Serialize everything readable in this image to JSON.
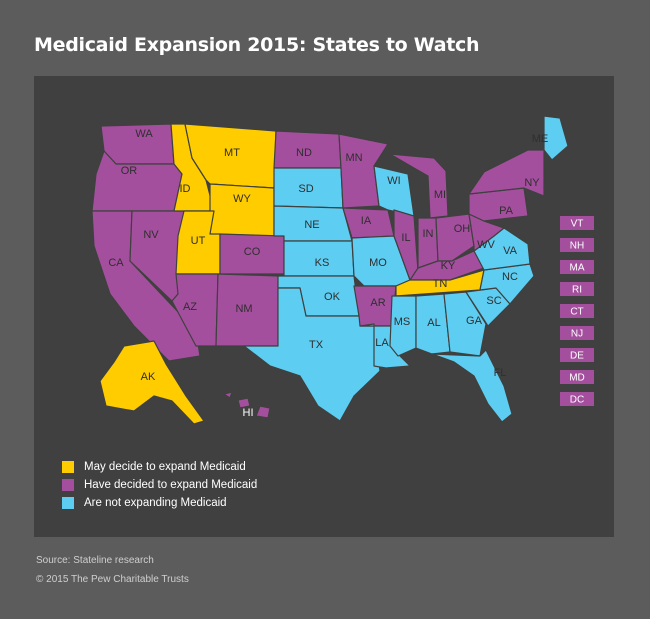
{
  "title": "Medicaid Expansion 2015: States to Watch",
  "colors": {
    "may": "#ffcc00",
    "decided": "#a44f9d",
    "not": "#5ecdf2"
  },
  "legend": [
    {
      "key": "may",
      "label": "May decide to expand Medicaid"
    },
    {
      "key": "decided",
      "label": "Have decided to expand Medicaid"
    },
    {
      "key": "not",
      "label": "Are not expanding Medicaid"
    }
  ],
  "states": [
    {
      "abbr": "WA",
      "status": "decided"
    },
    {
      "abbr": "OR",
      "status": "decided"
    },
    {
      "abbr": "CA",
      "status": "decided"
    },
    {
      "abbr": "NV",
      "status": "decided"
    },
    {
      "abbr": "ID",
      "status": "may"
    },
    {
      "abbr": "MT",
      "status": "may"
    },
    {
      "abbr": "WY",
      "status": "may"
    },
    {
      "abbr": "UT",
      "status": "may"
    },
    {
      "abbr": "AZ",
      "status": "decided"
    },
    {
      "abbr": "CO",
      "status": "decided"
    },
    {
      "abbr": "NM",
      "status": "decided"
    },
    {
      "abbr": "ND",
      "status": "decided"
    },
    {
      "abbr": "SD",
      "status": "not"
    },
    {
      "abbr": "NE",
      "status": "not"
    },
    {
      "abbr": "KS",
      "status": "not"
    },
    {
      "abbr": "OK",
      "status": "not"
    },
    {
      "abbr": "TX",
      "status": "not"
    },
    {
      "abbr": "MN",
      "status": "decided"
    },
    {
      "abbr": "IA",
      "status": "decided"
    },
    {
      "abbr": "MO",
      "status": "not"
    },
    {
      "abbr": "AR",
      "status": "decided"
    },
    {
      "abbr": "LA",
      "status": "not"
    },
    {
      "abbr": "WI",
      "status": "not"
    },
    {
      "abbr": "IL",
      "status": "decided"
    },
    {
      "abbr": "MI",
      "status": "decided"
    },
    {
      "abbr": "IN",
      "status": "decided"
    },
    {
      "abbr": "OH",
      "status": "decided"
    },
    {
      "abbr": "KY",
      "status": "decided"
    },
    {
      "abbr": "TN",
      "status": "may"
    },
    {
      "abbr": "MS",
      "status": "not"
    },
    {
      "abbr": "AL",
      "status": "not"
    },
    {
      "abbr": "GA",
      "status": "not"
    },
    {
      "abbr": "FL",
      "status": "not"
    },
    {
      "abbr": "SC",
      "status": "not"
    },
    {
      "abbr": "NC",
      "status": "not"
    },
    {
      "abbr": "VA",
      "status": "not"
    },
    {
      "abbr": "WV",
      "status": "decided"
    },
    {
      "abbr": "PA",
      "status": "decided"
    },
    {
      "abbr": "NY",
      "status": "decided"
    },
    {
      "abbr": "ME",
      "status": "not"
    },
    {
      "abbr": "AK",
      "status": "may"
    },
    {
      "abbr": "HI",
      "status": "decided"
    }
  ],
  "small_states": [
    {
      "abbr": "VT",
      "status": "decided"
    },
    {
      "abbr": "NH",
      "status": "decided"
    },
    {
      "abbr": "MA",
      "status": "decided"
    },
    {
      "abbr": "RI",
      "status": "decided"
    },
    {
      "abbr": "CT",
      "status": "decided"
    },
    {
      "abbr": "NJ",
      "status": "decided"
    },
    {
      "abbr": "DE",
      "status": "decided"
    },
    {
      "abbr": "MD",
      "status": "decided"
    },
    {
      "abbr": "DC",
      "status": "decided"
    }
  ],
  "source": "Source: Stateline research",
  "copyright": "© 2015 The Pew Charitable Trusts"
}
